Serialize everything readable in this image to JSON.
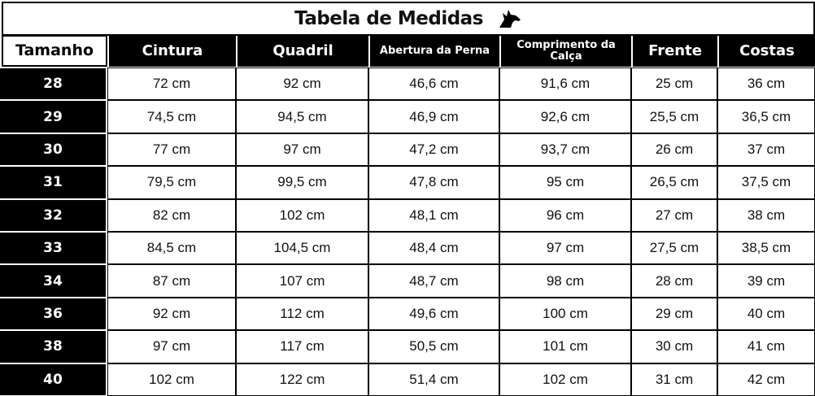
{
  "title": "Tabela de Medidas",
  "table": {
    "header": [
      "Tamanho",
      "Cintura",
      "Quadril",
      "Abertura da Perna",
      "Comprimento da Calça",
      "Frente",
      "Costas"
    ],
    "rows": [
      [
        "28",
        "72 cm",
        "92 cm",
        "46,6 cm",
        "91,6 cm",
        "25 cm",
        "36 cm"
      ],
      [
        "29",
        "74,5 cm",
        "94,5 cm",
        "46,9 cm",
        "92,6 cm",
        "25,5 cm",
        "36,5 cm"
      ],
      [
        "30",
        "77 cm",
        "97 cm",
        "47,2 cm",
        "93,7 cm",
        "26 cm",
        "37 cm"
      ],
      [
        "31",
        "79,5 cm",
        "99,5 cm",
        "47,8 cm",
        "95 cm",
        "26,5 cm",
        "37,5 cm"
      ],
      [
        "32",
        "82 cm",
        "102 cm",
        "48,1 cm",
        "96 cm",
        "27 cm",
        "38 cm"
      ],
      [
        "33",
        "84,5 cm",
        "104,5 cm",
        "48,4 cm",
        "97 cm",
        "27,5 cm",
        "38,5 cm"
      ],
      [
        "34",
        "87 cm",
        "107 cm",
        "48,7 cm",
        "98 cm",
        "28 cm",
        "39 cm"
      ],
      [
        "36",
        "92 cm",
        "112 cm",
        "49,6 cm",
        "100 cm",
        "29 cm",
        "40 cm"
      ],
      [
        "38",
        "97 cm",
        "117 cm",
        "50,5 cm",
        "101 cm",
        "30 cm",
        "41 cm"
      ],
      [
        "40",
        "102 cm",
        "122 cm",
        "51,4 cm",
        "102 cm",
        "31 cm",
        "42 cm"
      ]
    ]
  }
}
